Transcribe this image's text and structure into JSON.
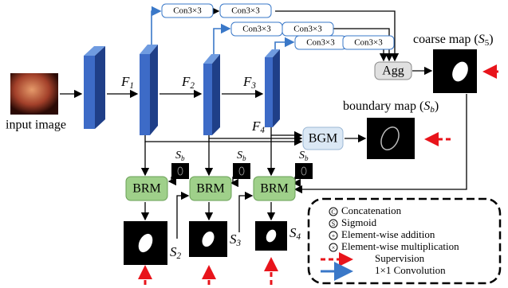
{
  "input_label": "input image",
  "conv_boxes": [
    "Con3×3",
    "Con3×3",
    "Con3×3",
    "Con3×3",
    "Con3×3",
    "Con3×3"
  ],
  "agg": "Agg",
  "coarse_map": {
    "prefix": "coarse map (",
    "symbol": "S",
    "sub": "5",
    "suffix": ")"
  },
  "features": [
    {
      "symbol": "F",
      "sub": "1"
    },
    {
      "symbol": "F",
      "sub": "2"
    },
    {
      "symbol": "F",
      "sub": "3"
    },
    {
      "symbol": "F",
      "sub": "4"
    }
  ],
  "bgm": "BGM",
  "boundary_map": {
    "prefix": "boundary map (",
    "symbol": "S",
    "sub": "b",
    "suffix": ")"
  },
  "brm": [
    "BRM",
    "BRM",
    "BRM"
  ],
  "sb_labels": [
    {
      "symbol": "S",
      "sub": "b"
    },
    {
      "symbol": "S",
      "sub": "b"
    },
    {
      "symbol": "S",
      "sub": "b"
    }
  ],
  "outputs": [
    {
      "symbol": "S",
      "sub": "2"
    },
    {
      "symbol": "S",
      "sub": "3"
    },
    {
      "symbol": "S",
      "sub": "4"
    }
  ],
  "legend": [
    {
      "icon": "C",
      "text": "Concatenation"
    },
    {
      "icon": "S",
      "text": "Sigmoid"
    },
    {
      "icon": "+",
      "text": "Element-wise addition"
    },
    {
      "icon": "×",
      "text": "Element-wise multiplication"
    },
    {
      "text": "Supervision"
    },
    {
      "text": "1×1 Convolution"
    }
  ]
}
